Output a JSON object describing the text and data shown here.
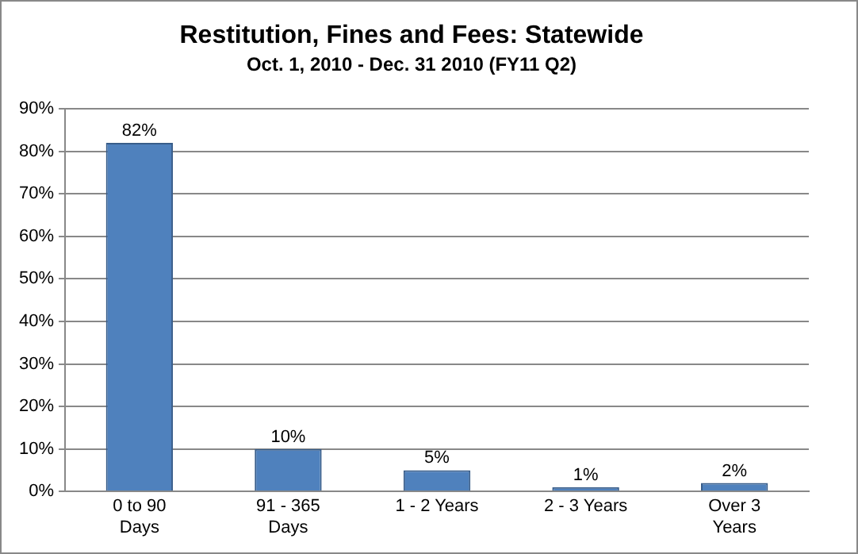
{
  "chart_data": {
    "type": "bar",
    "title": "Restitution, Fines and Fees: Statewide",
    "subtitle": "Oct. 1, 2010 - Dec. 31 2010 (FY11 Q2)",
    "categories": [
      "0 to 90 Days",
      "91 - 365 Days",
      "1 - 2 Years",
      "2 - 3 Years",
      "Over 3 Years"
    ],
    "values": [
      82,
      10,
      5,
      1,
      2
    ],
    "value_labels": [
      "82%",
      "10%",
      "5%",
      "1%",
      "2%"
    ],
    "color": "#4f81bd",
    "ylim": [
      0,
      90
    ],
    "yticks": [
      {
        "value": 0,
        "label": "0%"
      },
      {
        "value": 10,
        "label": "10%"
      },
      {
        "value": 20,
        "label": "20%"
      },
      {
        "value": 30,
        "label": "30%"
      },
      {
        "value": 40,
        "label": "40%"
      },
      {
        "value": 50,
        "label": "50%"
      },
      {
        "value": 60,
        "label": "60%"
      },
      {
        "value": 70,
        "label": "70%"
      },
      {
        "value": 80,
        "label": "80%"
      },
      {
        "value": 90,
        "label": "90%"
      }
    ],
    "grid": "y",
    "legend": false
  }
}
